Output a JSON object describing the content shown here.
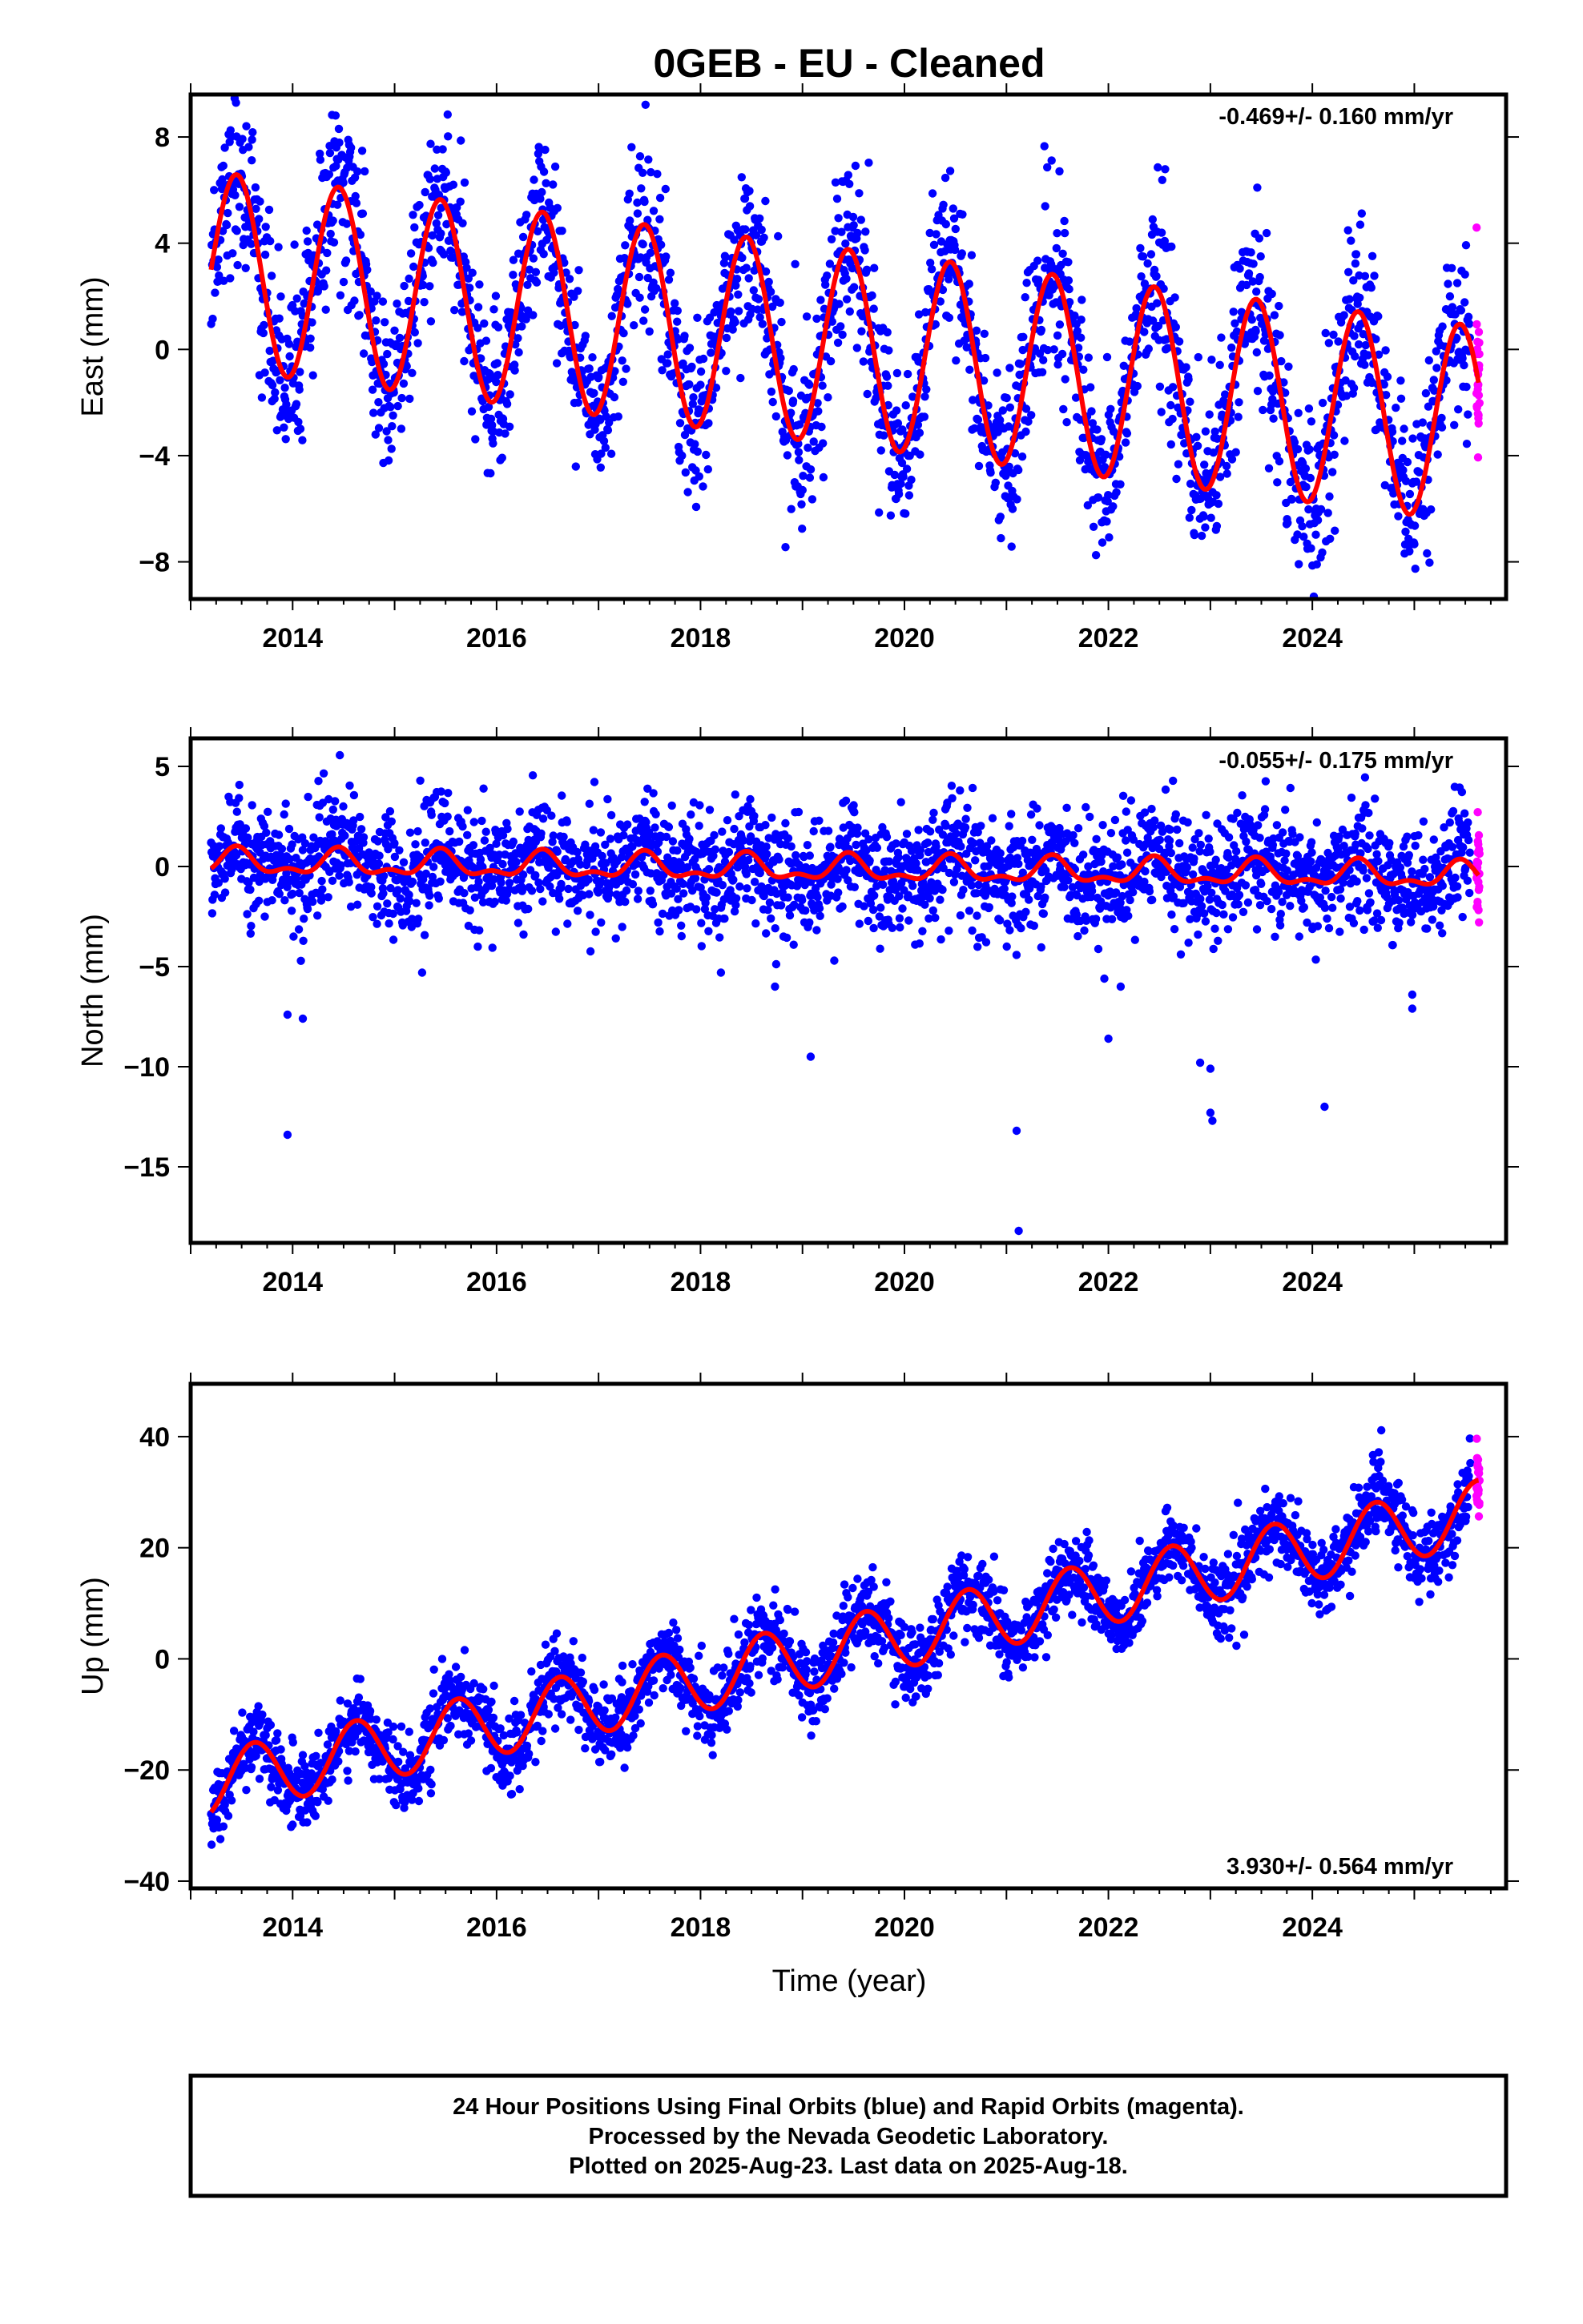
{
  "title": "0GEB  - EU - Cleaned",
  "footer": {
    "line1": "24 Hour Positions Using Final Orbits (blue) and Rapid Orbits (magenta).",
    "line2": "Processed by the Nevada Geodetic Laboratory.",
    "line3": "Plotted on 2025-Aug-23. Last data on 2025-Aug-18."
  },
  "colors": {
    "final_orbits": "#0000ff",
    "rapid_orbits": "#ff00ff",
    "model_fit": "#ff0000"
  },
  "chart_data": [
    {
      "type": "scatter",
      "component": "east",
      "ylabel": "East (mm)",
      "xlabel": "",
      "rate_label": "-0.469+/- 0.160 mm/yr",
      "rate_position": "top-right",
      "xlim": [
        2013.0,
        2025.9
      ],
      "ylim": [
        -9.4,
        9.6
      ],
      "xticks": [
        2014,
        2016,
        2018,
        2020,
        2022,
        2024
      ],
      "yticks": [
        -8,
        -4,
        0,
        4,
        8
      ],
      "ytick_labels": [
        "−8",
        "−4",
        "0",
        "4",
        "8"
      ],
      "model": {
        "t0": 2013.2,
        "t1": 2025.63,
        "offset": 3.0,
        "trend": -0.469,
        "annual_amp": 3.7,
        "annual_peak": 0.45,
        "semiannual_amp": 0.0
      },
      "scatter_spread": 1.6,
      "rapid_start": 2025.55,
      "series": [
        {
          "name": "Final Orbits",
          "color": "#0000ff"
        },
        {
          "name": "Rapid Orbits",
          "color": "#ff00ff"
        },
        {
          "name": "Model Fit",
          "color": "#ff0000"
        }
      ]
    },
    {
      "type": "scatter",
      "component": "north",
      "ylabel": "North (mm)",
      "xlabel": "",
      "rate_label": "-0.055+/- 0.175 mm/yr",
      "rate_position": "top-right",
      "xlim": [
        2013.0,
        2025.9
      ],
      "ylim": [
        -18.8,
        6.4
      ],
      "xticks": [
        2014,
        2016,
        2018,
        2020,
        2022,
        2024
      ],
      "yticks": [
        -15,
        -10,
        -5,
        0,
        5
      ],
      "ytick_labels": [
        "−15",
        "−10",
        "−5",
        "0",
        "5"
      ],
      "model": {
        "t0": 2013.2,
        "t1": 2025.63,
        "offset": 0.2,
        "trend": -0.055,
        "annual_amp": 0.55,
        "annual_peak": 0.45,
        "semiannual_amp": 0.3
      },
      "scatter_spread": 1.4,
      "rapid_start": 2025.55,
      "outliers": [
        {
          "x": 2013.95,
          "y": -7.4
        },
        {
          "x": 2013.95,
          "y": -13.4
        },
        {
          "x": 2014.1,
          "y": -7.6
        },
        {
          "x": 2015.27,
          "y": -5.3
        },
        {
          "x": 2018.2,
          "y": -5.3
        },
        {
          "x": 2018.73,
          "y": -6.0
        },
        {
          "x": 2019.08,
          "y": -9.5
        },
        {
          "x": 2021.1,
          "y": -13.2
        },
        {
          "x": 2021.12,
          "y": -18.2
        },
        {
          "x": 2021.96,
          "y": -5.6
        },
        {
          "x": 2022.0,
          "y": -8.6
        },
        {
          "x": 2022.12,
          "y": -6.0
        },
        {
          "x": 2022.9,
          "y": -9.8
        },
        {
          "x": 2023.0,
          "y": -10.1
        },
        {
          "x": 2023.0,
          "y": -12.3
        },
        {
          "x": 2023.02,
          "y": -12.7
        },
        {
          "x": 2024.12,
          "y": -12.0
        },
        {
          "x": 2024.98,
          "y": -6.4
        },
        {
          "x": 2024.98,
          "y": -7.1
        }
      ],
      "series": [
        {
          "name": "Final Orbits",
          "color": "#0000ff"
        },
        {
          "name": "Rapid Orbits",
          "color": "#ff00ff"
        },
        {
          "name": "Model Fit",
          "color": "#ff0000"
        }
      ]
    },
    {
      "type": "scatter",
      "component": "up",
      "ylabel": "Up (mm)",
      "xlabel": "Time (year)",
      "rate_label": "3.930+/- 0.564 mm/yr",
      "rate_position": "bottom-right",
      "xlim": [
        2013.0,
        2025.9
      ],
      "ylim": [
        -41.3,
        49.5
      ],
      "xticks": [
        2014,
        2016,
        2018,
        2020,
        2022,
        2024
      ],
      "yticks": [
        -40,
        -20,
        0,
        20,
        40
      ],
      "ytick_labels": [
        "−40",
        "−20",
        "0",
        "20",
        "40"
      ],
      "model": {
        "t0": 2013.2,
        "t1": 2025.63,
        "offset": -22.5,
        "trend": 3.93,
        "annual_amp": 5.8,
        "annual_peak": 0.62,
        "semiannual_amp": 0.0
      },
      "scatter_spread": 3.4,
      "rapid_start": 2025.55,
      "series": [
        {
          "name": "Final Orbits",
          "color": "#0000ff"
        },
        {
          "name": "Rapid Orbits",
          "color": "#ff00ff"
        },
        {
          "name": "Model Fit",
          "color": "#ff0000"
        }
      ]
    }
  ]
}
